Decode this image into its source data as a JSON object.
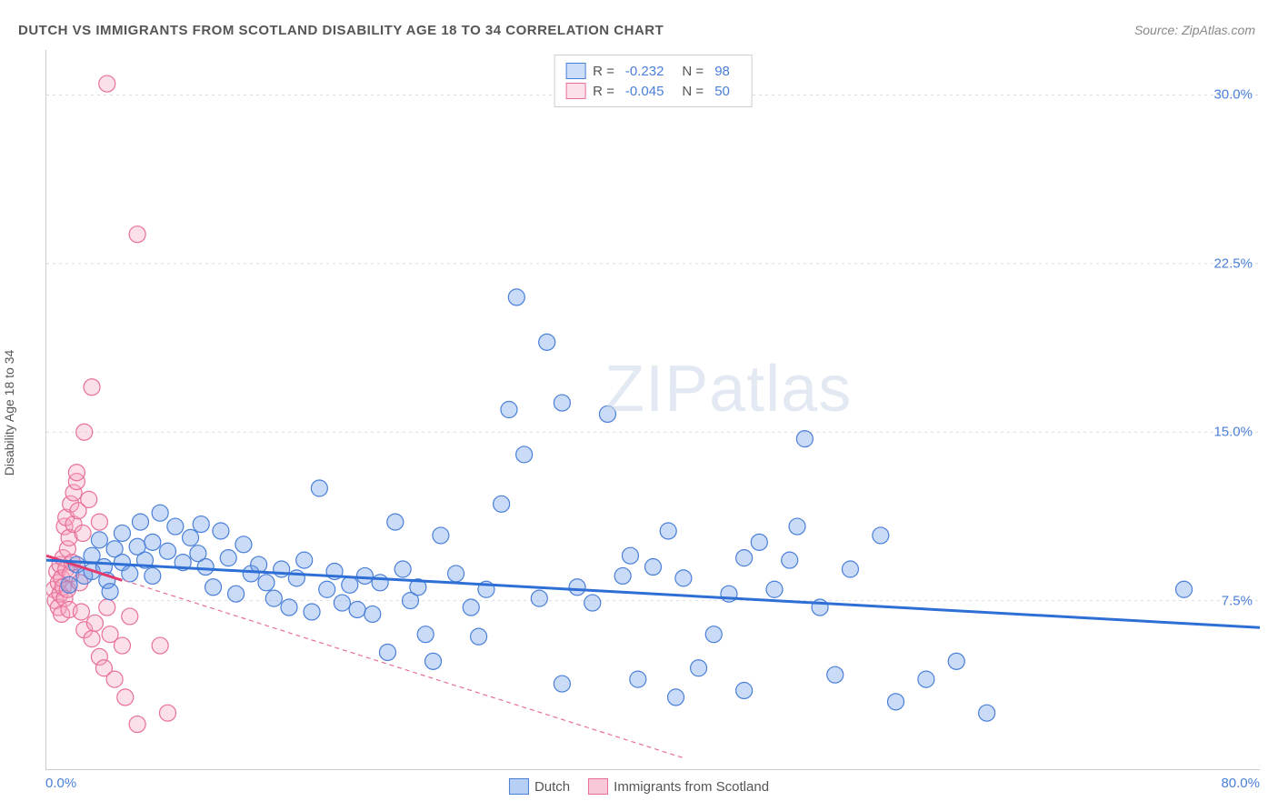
{
  "title": "DUTCH VS IMMIGRANTS FROM SCOTLAND DISABILITY AGE 18 TO 34 CORRELATION CHART",
  "source": "Source: ZipAtlas.com",
  "watermark": "ZIPatlas",
  "chart": {
    "type": "scatter",
    "ylabel": "Disability Age 18 to 34",
    "xlim": [
      0,
      80
    ],
    "ylim": [
      0,
      32
    ],
    "xtick_labels": [
      "0.0%",
      "80.0%"
    ],
    "ytick_positions": [
      7.5,
      15.0,
      22.5,
      30.0
    ],
    "ytick_labels": [
      "7.5%",
      "15.0%",
      "22.5%",
      "30.0%"
    ],
    "grid_color": "#dddddd",
    "axis_color": "#cccccc",
    "background_color": "#ffffff",
    "tick_color": "#4a7fd8",
    "label_color": "#555555",
    "marker_radius": 9,
    "marker_stroke_width": 1.2,
    "marker_fill_opacity": 0.35,
    "series": [
      {
        "name": "Dutch",
        "color": "#6699e8",
        "stroke": "#4a7fd8",
        "R": "-0.232",
        "N": "98",
        "trendline": {
          "x1": 0,
          "y1": 9.3,
          "x2": 80,
          "y2": 6.3,
          "width": 3,
          "dash": "none",
          "color": "#2e6fd6"
        },
        "points": [
          [
            1.5,
            8.2
          ],
          [
            2,
            9.1
          ],
          [
            2.5,
            8.6
          ],
          [
            3,
            9.5
          ],
          [
            3,
            8.8
          ],
          [
            3.5,
            10.2
          ],
          [
            3.8,
            9.0
          ],
          [
            4,
            8.4
          ],
          [
            4.2,
            7.9
          ],
          [
            4.5,
            9.8
          ],
          [
            5,
            10.5
          ],
          [
            5,
            9.2
          ],
          [
            5.5,
            8.7
          ],
          [
            6,
            9.9
          ],
          [
            6.2,
            11.0
          ],
          [
            6.5,
            9.3
          ],
          [
            7,
            10.1
          ],
          [
            7,
            8.6
          ],
          [
            7.5,
            11.4
          ],
          [
            8,
            9.7
          ],
          [
            8.5,
            10.8
          ],
          [
            9,
            9.2
          ],
          [
            9.5,
            10.3
          ],
          [
            10,
            9.6
          ],
          [
            10.2,
            10.9
          ],
          [
            10.5,
            9.0
          ],
          [
            11,
            8.1
          ],
          [
            11.5,
            10.6
          ],
          [
            12,
            9.4
          ],
          [
            12.5,
            7.8
          ],
          [
            13,
            10.0
          ],
          [
            13.5,
            8.7
          ],
          [
            14,
            9.1
          ],
          [
            14.5,
            8.3
          ],
          [
            15,
            7.6
          ],
          [
            15.5,
            8.9
          ],
          [
            16,
            7.2
          ],
          [
            16.5,
            8.5
          ],
          [
            17,
            9.3
          ],
          [
            17.5,
            7.0
          ],
          [
            18,
            12.5
          ],
          [
            18.5,
            8.0
          ],
          [
            19,
            8.8
          ],
          [
            19.5,
            7.4
          ],
          [
            20,
            8.2
          ],
          [
            20.5,
            7.1
          ],
          [
            21,
            8.6
          ],
          [
            21.5,
            6.9
          ],
          [
            22,
            8.3
          ],
          [
            22.5,
            5.2
          ],
          [
            23,
            11.0
          ],
          [
            23.5,
            8.9
          ],
          [
            24,
            7.5
          ],
          [
            24.5,
            8.1
          ],
          [
            25,
            6.0
          ],
          [
            25.5,
            4.8
          ],
          [
            26,
            10.4
          ],
          [
            27,
            8.7
          ],
          [
            28,
            7.2
          ],
          [
            28.5,
            5.9
          ],
          [
            29,
            8.0
          ],
          [
            30,
            11.8
          ],
          [
            30.5,
            16.0
          ],
          [
            31,
            21.0
          ],
          [
            31.5,
            14.0
          ],
          [
            32.5,
            7.6
          ],
          [
            33,
            19.0
          ],
          [
            34,
            16.3
          ],
          [
            34,
            3.8
          ],
          [
            35,
            8.1
          ],
          [
            36,
            7.4
          ],
          [
            37,
            15.8
          ],
          [
            38,
            8.6
          ],
          [
            38.5,
            9.5
          ],
          [
            39,
            4.0
          ],
          [
            40,
            9.0
          ],
          [
            41,
            10.6
          ],
          [
            41.5,
            3.2
          ],
          [
            42,
            8.5
          ],
          [
            43,
            4.5
          ],
          [
            44,
            6.0
          ],
          [
            45,
            7.8
          ],
          [
            46,
            9.4
          ],
          [
            46,
            3.5
          ],
          [
            47,
            10.1
          ],
          [
            48,
            8.0
          ],
          [
            49,
            9.3
          ],
          [
            49.5,
            10.8
          ],
          [
            50,
            14.7
          ],
          [
            51,
            7.2
          ],
          [
            52,
            4.2
          ],
          [
            53,
            8.9
          ],
          [
            55,
            10.4
          ],
          [
            56,
            3.0
          ],
          [
            58,
            4.0
          ],
          [
            60,
            4.8
          ],
          [
            62,
            2.5
          ],
          [
            75,
            8.0
          ]
        ]
      },
      {
        "name": "Immigrants from Scotland",
        "color": "#f5a6c0",
        "stroke": "#e86f9a",
        "R": "-0.045",
        "N": "50",
        "trendline": {
          "x1": 0,
          "y1": 9.5,
          "x2": 42,
          "y2": 0.5,
          "width": 1.2,
          "dash": "5,4",
          "color": "#e86f9a"
        },
        "trendline_solid": {
          "x1": 0,
          "y1": 9.5,
          "x2": 5,
          "y2": 8.4,
          "width": 3,
          "color": "#e23b6e"
        },
        "points": [
          [
            0.5,
            8.0
          ],
          [
            0.6,
            7.5
          ],
          [
            0.7,
            8.8
          ],
          [
            0.8,
            7.2
          ],
          [
            0.8,
            8.3
          ],
          [
            0.9,
            9.1
          ],
          [
            0.9,
            7.8
          ],
          [
            1.0,
            8.5
          ],
          [
            1.0,
            6.9
          ],
          [
            1.1,
            9.4
          ],
          [
            1.1,
            8.1
          ],
          [
            1.2,
            7.6
          ],
          [
            1.2,
            10.8
          ],
          [
            1.3,
            8.9
          ],
          [
            1.3,
            11.2
          ],
          [
            1.4,
            9.8
          ],
          [
            1.4,
            8.0
          ],
          [
            1.5,
            10.3
          ],
          [
            1.5,
            7.1
          ],
          [
            1.6,
            11.8
          ],
          [
            1.6,
            8.7
          ],
          [
            1.7,
            9.2
          ],
          [
            1.8,
            12.3
          ],
          [
            1.8,
            10.9
          ],
          [
            2.0,
            12.8
          ],
          [
            2.0,
            13.2
          ],
          [
            2.1,
            11.5
          ],
          [
            2.2,
            8.3
          ],
          [
            2.3,
            7.0
          ],
          [
            2.4,
            10.5
          ],
          [
            2.5,
            15.0
          ],
          [
            2.5,
            6.2
          ],
          [
            2.8,
            12.0
          ],
          [
            3.0,
            17.0
          ],
          [
            3.0,
            5.8
          ],
          [
            3.2,
            6.5
          ],
          [
            3.5,
            11.0
          ],
          [
            3.5,
            5.0
          ],
          [
            3.8,
            4.5
          ],
          [
            4.0,
            7.2
          ],
          [
            4.0,
            30.5
          ],
          [
            4.2,
            6.0
          ],
          [
            4.5,
            4.0
          ],
          [
            5.0,
            5.5
          ],
          [
            5.2,
            3.2
          ],
          [
            5.5,
            6.8
          ],
          [
            6.0,
            23.8
          ],
          [
            6.0,
            2.0
          ],
          [
            7.5,
            5.5
          ],
          [
            8.0,
            2.5
          ]
        ]
      }
    ],
    "legend_bottom": [
      {
        "label": "Dutch",
        "fill": "#b8cff5",
        "stroke": "#4a7fd8"
      },
      {
        "label": "Immigrants from Scotland",
        "fill": "#f8c8d8",
        "stroke": "#e86f9a"
      }
    ]
  }
}
